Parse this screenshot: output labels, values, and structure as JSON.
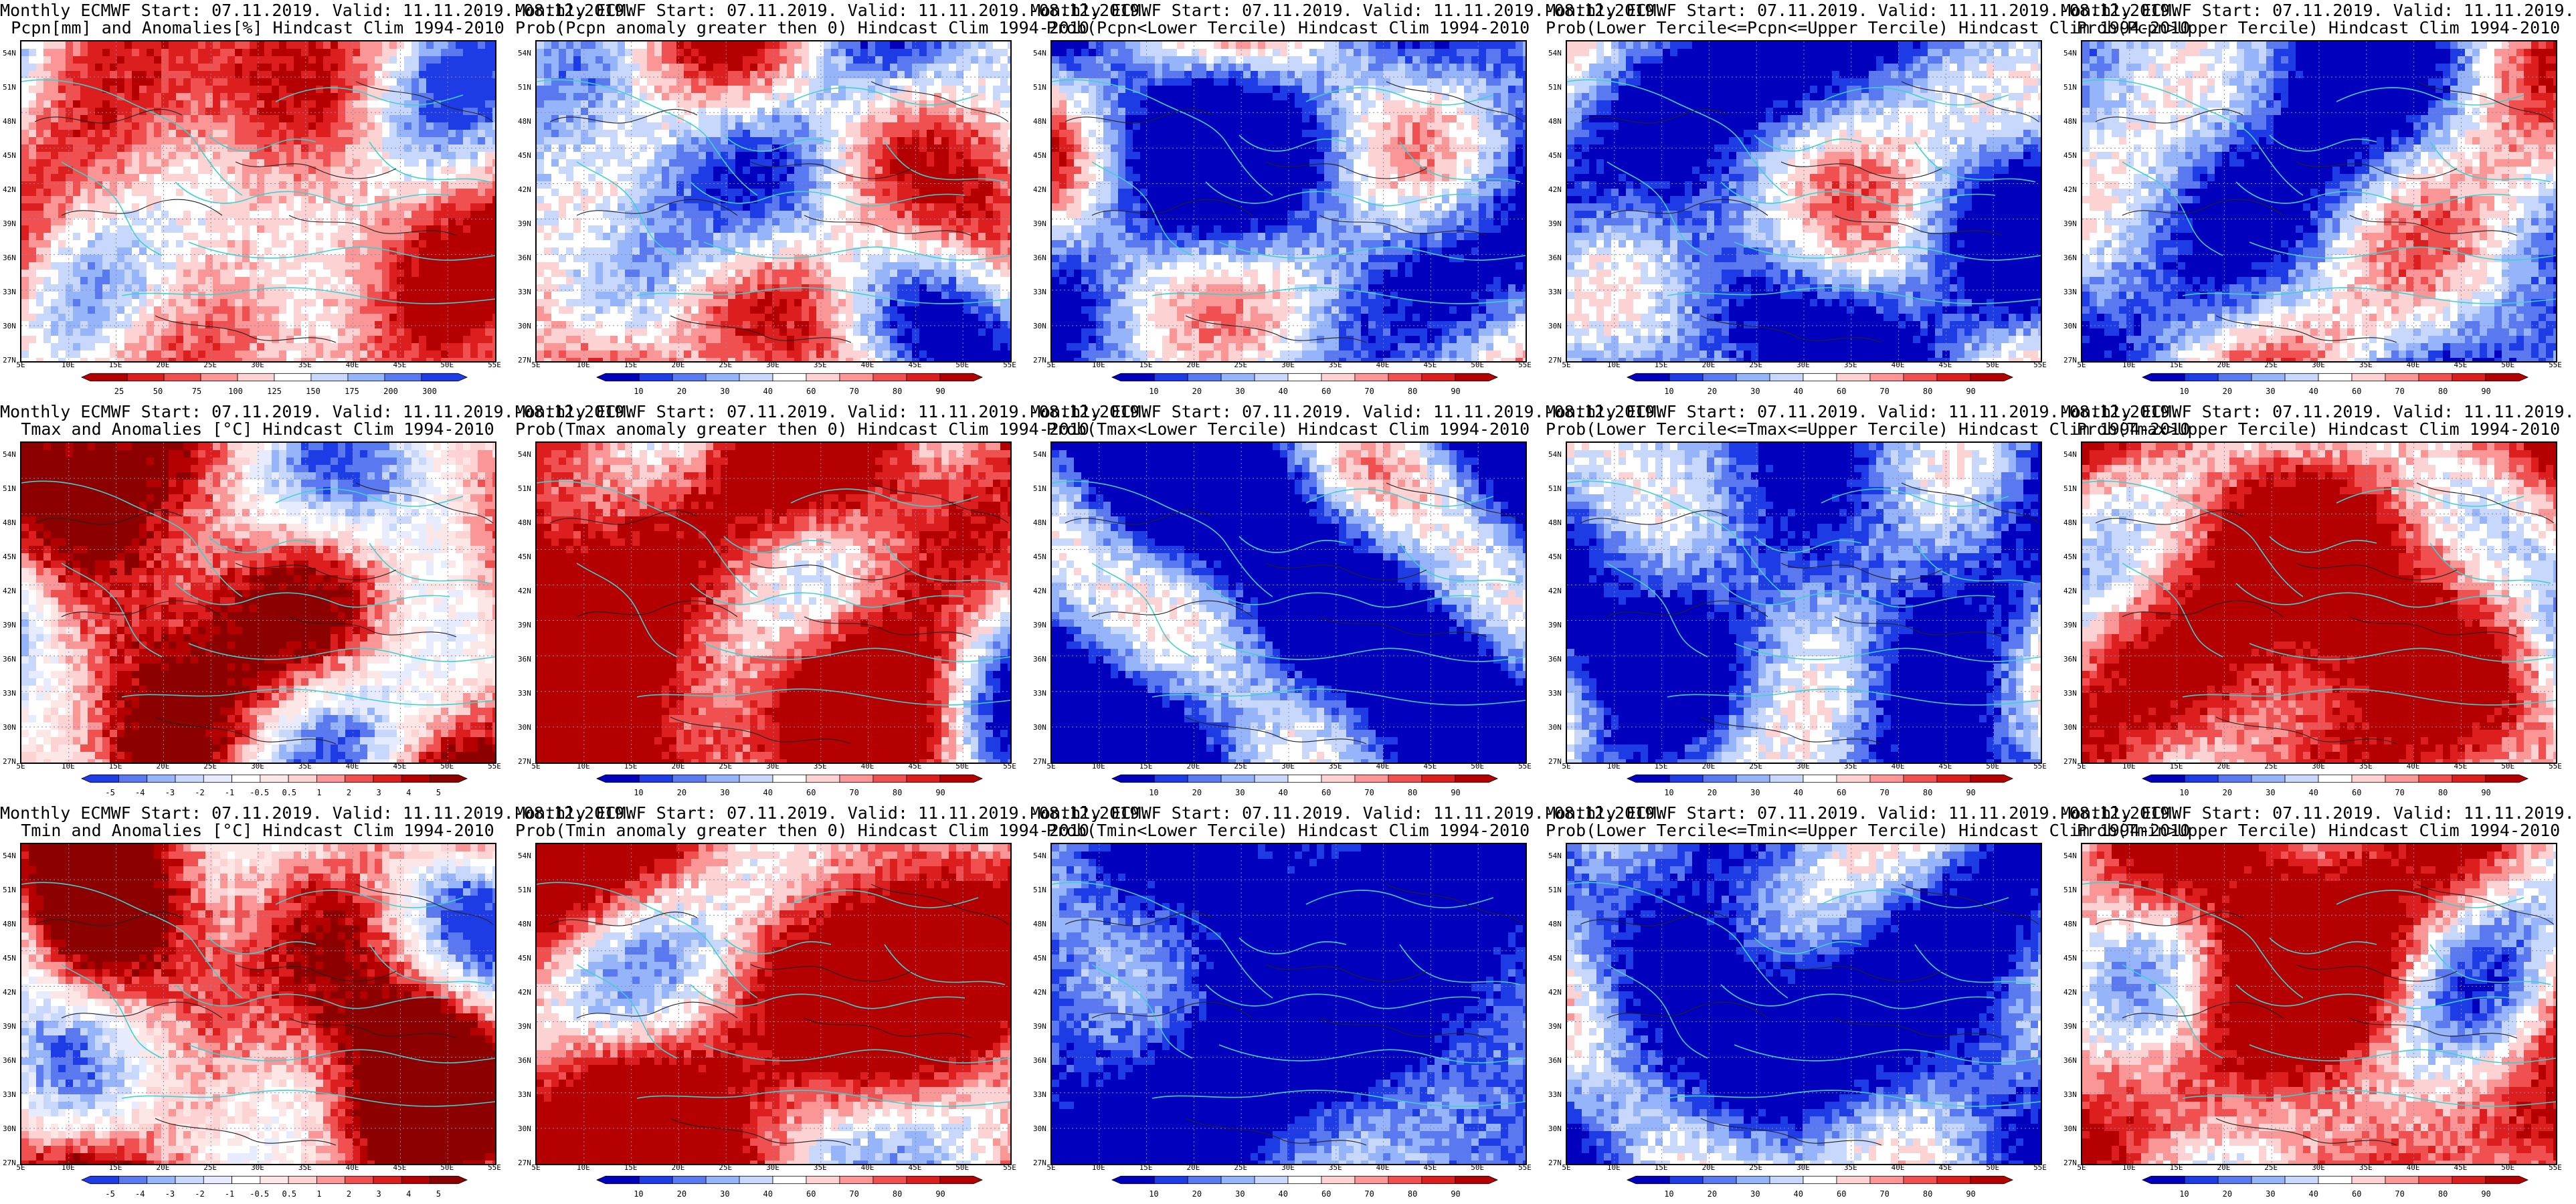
{
  "row_prefix": "Monthly ECMWF Start: 07.11.2019. Valid: 11.11.2019.-08.12.2019.",
  "panels": [
    {
      "row": 0,
      "col": 0,
      "t2": "Pcpn[mm] and Anomalies[%] Hindcast Clim 1994-2010",
      "scheme": "pcpnanom",
      "bias": -0.25,
      "cbar": [
        "25",
        "50",
        "75",
        "100",
        "125",
        "150",
        "175",
        "200",
        "300"
      ]
    },
    {
      "row": 0,
      "col": 1,
      "t2": "Prob(Pcpn anomaly greater then 0) Hindcast Clim 1994-2010",
      "scheme": "prob",
      "bias": 0.0,
      "cbar": [
        "10",
        "20",
        "30",
        "40",
        "60",
        "70",
        "80",
        "90"
      ]
    },
    {
      "row": 0,
      "col": 2,
      "t2": "Prob(Pcpn<Lower Tercile) Hindcast Clim 1994-2010",
      "scheme": "prob",
      "bias": -0.45,
      "cbar": [
        "10",
        "20",
        "30",
        "40",
        "60",
        "70",
        "80",
        "90"
      ]
    },
    {
      "row": 0,
      "col": 3,
      "t2": "Prob(Lower Tercile<=Pcpn<=Upper Tercile) Hindcast Clim 1994-2010",
      "scheme": "prob",
      "bias": -0.55,
      "cbar": [
        "10",
        "20",
        "30",
        "40",
        "60",
        "70",
        "80",
        "90"
      ]
    },
    {
      "row": 0,
      "col": 4,
      "t2": "Prob(Pcpn>Upper Tercile) Hindcast Clim 1994-2010",
      "scheme": "prob",
      "bias": -0.35,
      "cbar": [
        "10",
        "20",
        "30",
        "40",
        "60",
        "70",
        "80",
        "90"
      ]
    },
    {
      "row": 1,
      "col": 0,
      "t2": "Tmax and Anomalies [°C] Hindcast Clim 1994-2010",
      "scheme": "tanom",
      "bias": 0.35,
      "cbar": [
        "-5",
        "-4",
        "-3",
        "-2",
        "-1",
        "-0.5",
        "0.5",
        "1",
        "2",
        "3",
        "4",
        "5"
      ]
    },
    {
      "row": 1,
      "col": 1,
      "t2": "Prob(Tmax anomaly greater then 0) Hindcast Clim 1994-2010",
      "scheme": "prob",
      "bias": 0.7,
      "cbar": [
        "10",
        "20",
        "30",
        "40",
        "60",
        "70",
        "80",
        "90"
      ]
    },
    {
      "row": 1,
      "col": 2,
      "t2": "Prob(Tmax<Lower Tercile) Hindcast Clim 1994-2010",
      "scheme": "prob",
      "bias": -0.85,
      "cbar": [
        "10",
        "20",
        "30",
        "40",
        "60",
        "70",
        "80",
        "90"
      ]
    },
    {
      "row": 1,
      "col": 3,
      "t2": "Prob(Lower Tercile<=Tmax<=Upper Tercile) Hindcast Clim 1994-2010",
      "scheme": "prob",
      "bias": -0.6,
      "cbar": [
        "10",
        "20",
        "30",
        "40",
        "60",
        "70",
        "80",
        "90"
      ]
    },
    {
      "row": 1,
      "col": 4,
      "t2": "Prob(Tmax>Upper Tercile) Hindcast Clim 1994-2010",
      "scheme": "prob",
      "bias": 0.55,
      "cbar": [
        "10",
        "20",
        "30",
        "40",
        "60",
        "70",
        "80",
        "90"
      ]
    },
    {
      "row": 2,
      "col": 0,
      "t2": "Tmin and Anomalies [°C] Hindcast Clim 1994-2010",
      "scheme": "tanom",
      "bias": 0.4,
      "cbar": [
        "-5",
        "-4",
        "-3",
        "-2",
        "-1",
        "-0.5",
        "0.5",
        "1",
        "2",
        "3",
        "4",
        "5"
      ]
    },
    {
      "row": 2,
      "col": 1,
      "t2": "Prob(Tmin anomaly greater then 0) Hindcast Clim 1994-2010",
      "scheme": "prob",
      "bias": 0.75,
      "cbar": [
        "10",
        "20",
        "30",
        "40",
        "60",
        "70",
        "80",
        "90"
      ]
    },
    {
      "row": 2,
      "col": 2,
      "t2": "Prob(Tmin<Lower Tercile) Hindcast Clim 1994-2010",
      "scheme": "prob",
      "bias": -0.85,
      "cbar": [
        "10",
        "20",
        "30",
        "40",
        "60",
        "70",
        "80",
        "90"
      ]
    },
    {
      "row": 2,
      "col": 3,
      "t2": "Prob(Lower Tercile<=Tmin<=Upper Tercile) Hindcast Clim 1994-2010",
      "scheme": "prob",
      "bias": -0.6,
      "cbar": [
        "10",
        "20",
        "30",
        "40",
        "60",
        "70",
        "80",
        "90"
      ]
    },
    {
      "row": 2,
      "col": 4,
      "t2": "Prob(Tmin>Upper Tercile) Hindcast Clim 1994-2010",
      "scheme": "prob",
      "bias": 0.6,
      "cbar": [
        "10",
        "20",
        "30",
        "40",
        "60",
        "70",
        "80",
        "90"
      ]
    }
  ],
  "lat_labels": [
    "54N",
    "51N",
    "48N",
    "45N",
    "42N",
    "39N",
    "36N",
    "33N",
    "30N",
    "27N"
  ],
  "lon_labels": [
    "5E",
    "10E",
    "15E",
    "20E",
    "25E",
    "30E",
    "35E",
    "40E",
    "45E",
    "50E",
    "55E"
  ],
  "colors": {
    "prob": [
      "#0000bd",
      "#1e3ce6",
      "#5a78f0",
      "#96b4fa",
      "#c8d7fc",
      "#ffffff",
      "#fcd2d2",
      "#fa9696",
      "#f05050",
      "#dc1e1e",
      "#b40000"
    ],
    "pcpnanom": [
      "#b40000",
      "#dc1e1e",
      "#f05050",
      "#fa9696",
      "#fcd2d2",
      "#ffffff",
      "#c8d7fc",
      "#96b4fa",
      "#5a78f0",
      "#1e3ce6"
    ],
    "tanom": [
      "#1e3ce6",
      "#5a78f0",
      "#96b4fa",
      "#c8d7fc",
      "#e6ecfd",
      "#ffffff",
      "#fde6e6",
      "#fcd2d2",
      "#fa9696",
      "#f05050",
      "#dc1e1e",
      "#b40000",
      "#8c0000"
    ],
    "coast": "#40d0d0",
    "contour": "#222222"
  }
}
